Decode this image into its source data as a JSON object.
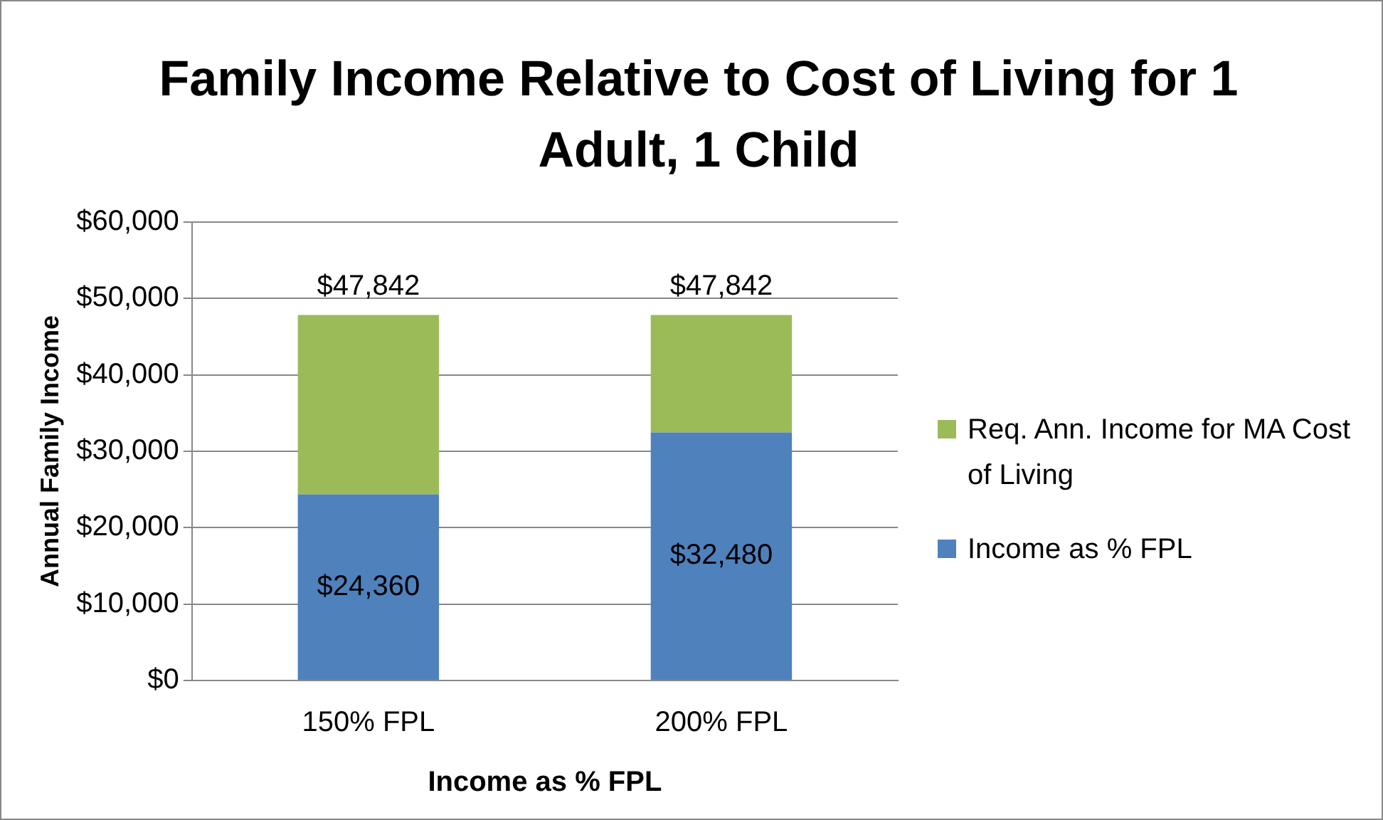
{
  "chart_data": {
    "type": "bar",
    "title": "Family Income Relative to Cost of Living for 1 Adult, 1 Child",
    "xlabel": "Income as % FPL",
    "ylabel": "Annual Family Income",
    "categories": [
      "150% FPL",
      "200% FPL"
    ],
    "stacked": true,
    "series": [
      {
        "name": "Income as % FPL",
        "color": "#4f81bd",
        "values": [
          24360,
          32480
        ],
        "value_labels": [
          "$24,360",
          "$32,480"
        ]
      },
      {
        "name": "Req. Ann. Income for MA Cost of Living",
        "color": "#9bbb59",
        "values": [
          23482,
          15362
        ]
      }
    ],
    "totals": [
      "$47,842",
      "$47,842"
    ],
    "ylim": [
      0,
      60000
    ],
    "yticks": [
      {
        "value": 0,
        "label": "$0"
      },
      {
        "value": 10000,
        "label": "$10,000"
      },
      {
        "value": 20000,
        "label": "$20,000"
      },
      {
        "value": 30000,
        "label": "$30,000"
      },
      {
        "value": 40000,
        "label": "$40,000"
      },
      {
        "value": 50000,
        "label": "$50,000"
      },
      {
        "value": 60000,
        "label": "$60,000"
      }
    ],
    "grid": "y",
    "legend": "right"
  }
}
